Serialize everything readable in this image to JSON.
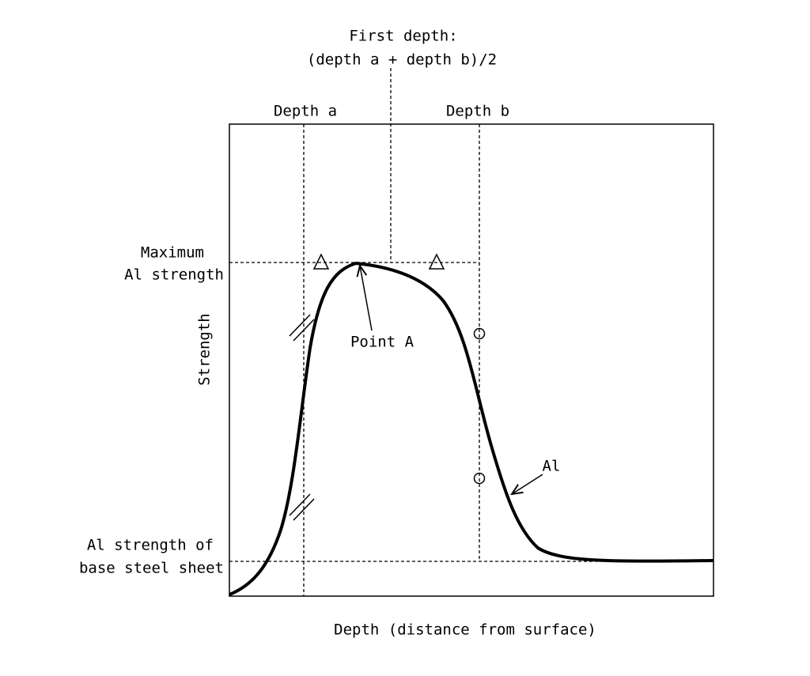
{
  "title": {
    "line1": "First depth:",
    "line2": "(depth a + depth b)/2"
  },
  "depth_labels": {
    "a": "Depth a",
    "b": "Depth b"
  },
  "max_label": {
    "line1": "Maximum",
    "line2": "Al strength"
  },
  "base_label": {
    "line1": "Al strength of",
    "line2": "base steel sheet"
  },
  "y_axis_label": "Strength",
  "x_axis_label": "Depth (distance from surface)",
  "annotations": {
    "point_a": "Point A",
    "curve": "Al"
  }
}
